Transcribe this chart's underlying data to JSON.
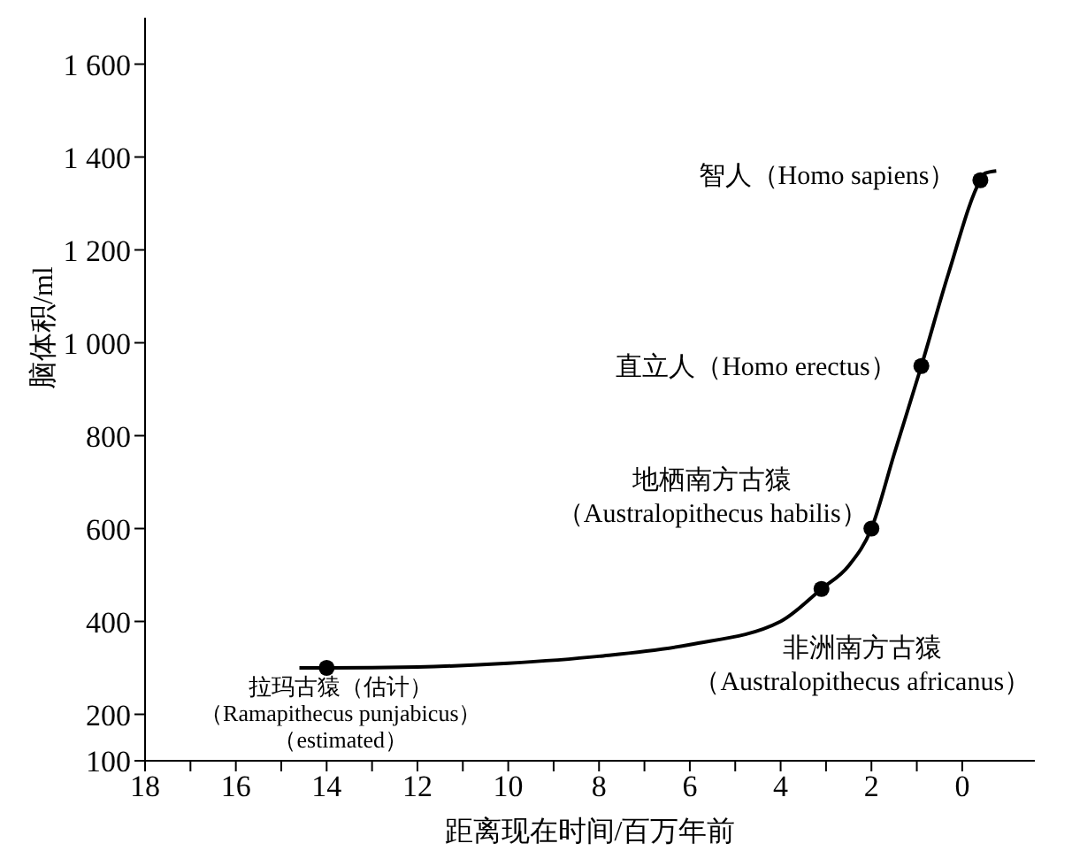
{
  "chart_data": {
    "type": "line",
    "xlabel": "距离现在时间/百万年前",
    "ylabel": "脑体积/ml",
    "xlim": [
      18,
      -1.6
    ],
    "xticks": [
      18,
      {
        "value": 17,
        "label": null
      },
      16,
      {
        "value": 15,
        "label": null
      },
      14,
      {
        "value": 13,
        "label": null
      },
      12,
      {
        "value": 11,
        "label": null
      },
      10,
      {
        "value": 9,
        "label": null
      },
      8,
      {
        "value": 7,
        "label": null
      },
      6,
      {
        "value": 5,
        "label": null
      },
      4,
      {
        "value": 3,
        "label": null
      },
      2,
      {
        "value": 1,
        "label": null
      },
      0
    ],
    "ylim": [
      100,
      1700
    ],
    "yticks": [
      100,
      200,
      400,
      600,
      800,
      {
        "value": 1000,
        "label": "1 000"
      },
      {
        "value": 1200,
        "label": "1 200"
      },
      {
        "value": 1400,
        "label": "1 400"
      },
      {
        "value": 1600,
        "label": "1 600"
      }
    ],
    "grid": false,
    "series": [
      {
        "color": "#000000",
        "marker": "none",
        "x": [
          14.6,
          14,
          12,
          10,
          8,
          6,
          4,
          3.1,
          2.5,
          2,
          1.5,
          0.9,
          0.3,
          -0.4,
          -0.5,
          -0.75
        ],
        "values": [
          300,
          300,
          302,
          310,
          325,
          350,
          400,
          470,
          520,
          600,
          760,
          950,
          1150,
          1350,
          1365,
          1370
        ]
      },
      {
        "type": "scatter",
        "color": "#000000",
        "marker": "circle",
        "x": [
          14,
          3.1,
          2,
          0.9,
          -0.4
        ],
        "values": [
          300,
          470,
          600,
          950,
          1350
        ]
      }
    ],
    "annotations": [
      {
        "text": "拉玛古猿（估计）（Ramapithecus punjabicus）（estimated）",
        "x": 14,
        "y": 300
      },
      {
        "text": "非洲南方古猿（Australopithecus africanus）",
        "x": 3.1,
        "y": 470
      },
      {
        "text": "地栖南方古猿（Australopithecus habilis）",
        "x": 2,
        "y": 600
      },
      {
        "text": "直立人（Homo erectus）",
        "x": 0.9,
        "y": 950
      },
      {
        "text": "智人（Homo sapiens）",
        "x": -0.4,
        "y": 1350
      }
    ]
  }
}
